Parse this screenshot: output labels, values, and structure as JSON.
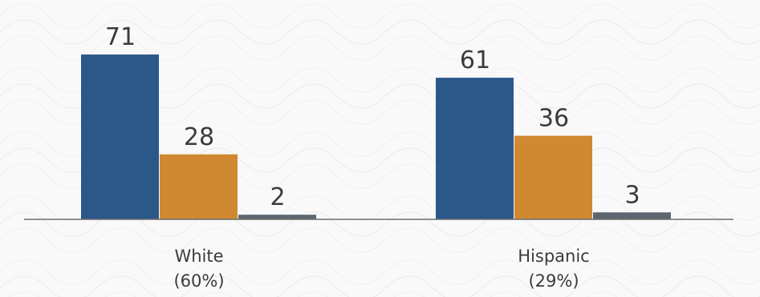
{
  "chart_data": {
    "type": "bar",
    "categories": [
      [
        "White",
        "(60%)"
      ],
      [
        "Hispanic",
        "(29%)"
      ]
    ],
    "series": [
      {
        "values": [
          71,
          28
        ]
      },
      {
        "values": [
          61,
          36
        ]
      },
      {
        "values": [
          2,
          3
        ]
      }
    ],
    "series_by_category": [
      [
        71,
        28,
        2
      ],
      [
        61,
        36,
        3
      ]
    ],
    "colors": [
      "#2c5789",
      "#d08931",
      "#5c6670"
    ],
    "axis_color": "#6e6e6e",
    "ylim": [
      0,
      80
    ],
    "grid": false,
    "legend": "none",
    "title": "",
    "xlabel": "",
    "ylabel": ""
  }
}
